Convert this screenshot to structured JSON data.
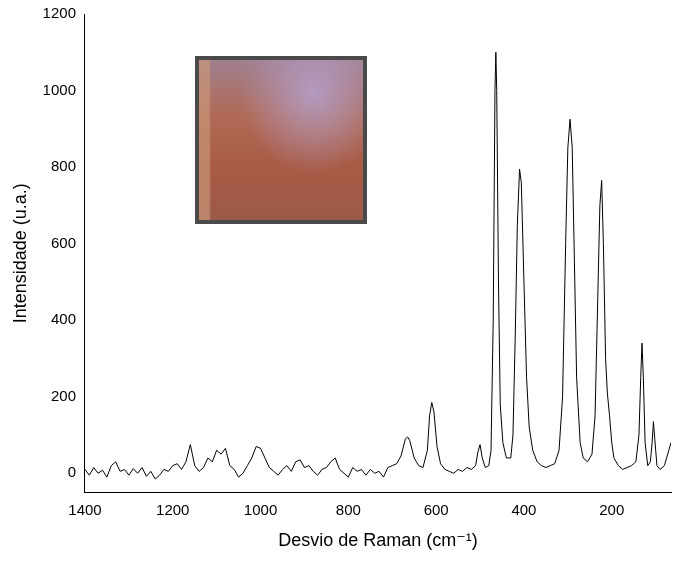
{
  "chart_data": {
    "type": "line",
    "x_label": "Desvio de Raman (cm⁻¹)",
    "y_label": "Intensidade (u.a.)",
    "color": "#000000",
    "grid": false,
    "xlim": [
      1400,
      65
    ],
    "ylim": [
      -50,
      1200
    ],
    "xticks": [
      1400,
      1200,
      1000,
      800,
      600,
      400,
      200
    ],
    "yticks": [
      0,
      200,
      400,
      600,
      800,
      1000,
      1200
    ],
    "x": [
      1400,
      1390,
      1380,
      1370,
      1360,
      1350,
      1340,
      1330,
      1320,
      1310,
      1300,
      1290,
      1280,
      1270,
      1260,
      1250,
      1240,
      1230,
      1220,
      1210,
      1200,
      1190,
      1180,
      1170,
      1160,
      1150,
      1140,
      1130,
      1120,
      1110,
      1100,
      1090,
      1080,
      1070,
      1060,
      1050,
      1040,
      1030,
      1020,
      1010,
      1000,
      990,
      980,
      970,
      960,
      950,
      940,
      930,
      920,
      910,
      900,
      890,
      880,
      870,
      860,
      850,
      840,
      830,
      820,
      810,
      800,
      790,
      780,
      770,
      760,
      750,
      740,
      730,
      720,
      710,
      700,
      690,
      680,
      670,
      665,
      660,
      650,
      640,
      630,
      620,
      615,
      610,
      605,
      598,
      590,
      580,
      570,
      560,
      550,
      540,
      530,
      520,
      510,
      505,
      500,
      495,
      488,
      480,
      475,
      470,
      466,
      464,
      462,
      458,
      454,
      448,
      440,
      430,
      425,
      420,
      415,
      410,
      406,
      400,
      394,
      388,
      380,
      370,
      360,
      350,
      340,
      330,
      320,
      312,
      305,
      300,
      295,
      290,
      285,
      280,
      272,
      265,
      255,
      245,
      238,
      232,
      227,
      223,
      219,
      214,
      210,
      205,
      200,
      195,
      185,
      175,
      165,
      155,
      145,
      138,
      134,
      131,
      128,
      124,
      118,
      112,
      108,
      105,
      102,
      97,
      90,
      80,
      75,
      70,
      65
    ],
    "values": [
      10,
      -5,
      15,
      0,
      8,
      -10,
      20,
      30,
      5,
      10,
      -5,
      12,
      0,
      15,
      -8,
      5,
      -15,
      -5,
      10,
      5,
      20,
      25,
      10,
      30,
      75,
      20,
      5,
      15,
      40,
      30,
      60,
      50,
      65,
      20,
      10,
      -10,
      0,
      20,
      40,
      70,
      65,
      40,
      15,
      5,
      -5,
      10,
      20,
      5,
      30,
      35,
      15,
      20,
      5,
      -5,
      10,
      15,
      30,
      40,
      10,
      0,
      -10,
      15,
      5,
      10,
      -5,
      10,
      0,
      5,
      -10,
      15,
      20,
      25,
      45,
      90,
      95,
      85,
      40,
      20,
      15,
      60,
      150,
      185,
      160,
      70,
      25,
      10,
      5,
      0,
      10,
      5,
      15,
      10,
      20,
      55,
      75,
      40,
      15,
      20,
      60,
      400,
      1000,
      1100,
      1000,
      500,
      180,
      80,
      40,
      40,
      100,
      350,
      650,
      795,
      760,
      500,
      250,
      120,
      60,
      30,
      20,
      15,
      20,
      25,
      60,
      200,
      600,
      850,
      925,
      850,
      550,
      250,
      80,
      40,
      30,
      50,
      150,
      450,
      700,
      765,
      600,
      300,
      210,
      150,
      80,
      40,
      20,
      10,
      15,
      20,
      30,
      100,
      250,
      340,
      250,
      80,
      20,
      30,
      80,
      135,
      90,
      20,
      10,
      20,
      40,
      60,
      80
    ]
  }
}
